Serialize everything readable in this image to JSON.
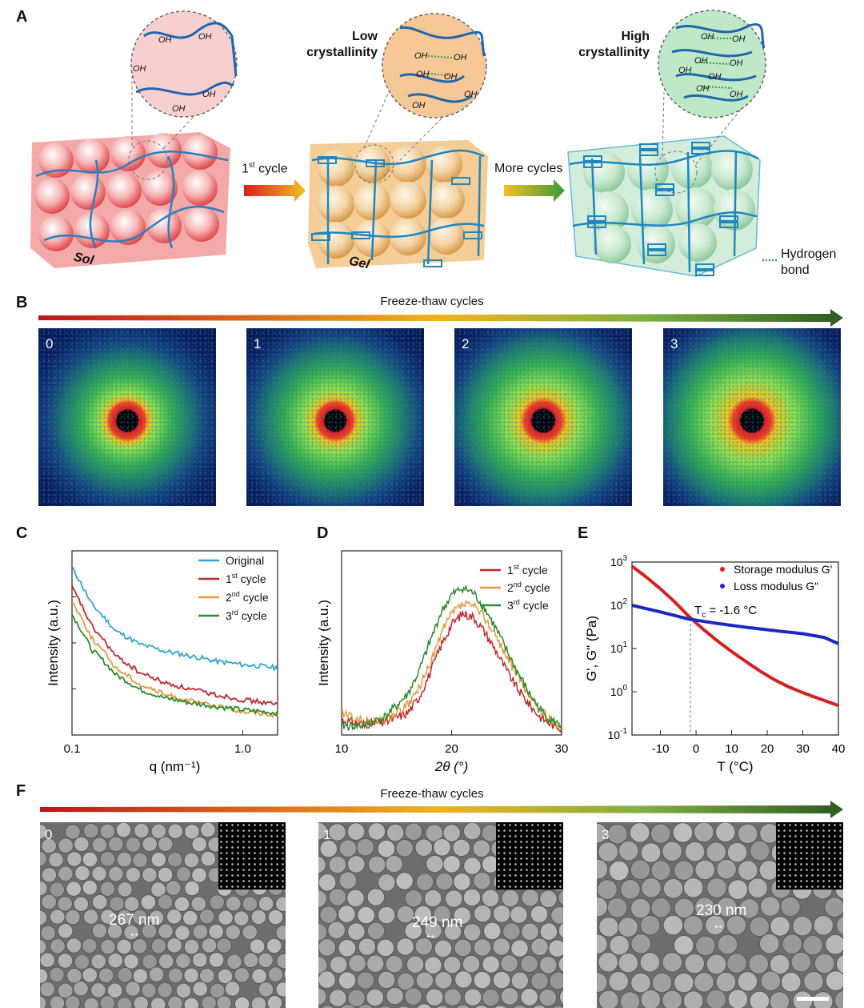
{
  "panels": {
    "A": "A",
    "B": "B",
    "C": "C",
    "D": "D",
    "E": "E",
    "F": "F"
  },
  "scheme": {
    "low_crystallinity": [
      "Low",
      "crystallinity"
    ],
    "high_crystallinity": [
      "High",
      "crystallinity"
    ],
    "first_cycle": {
      "base": "1",
      "sup": "st",
      "rest": " cycle"
    },
    "more_cycles": "More cycles",
    "sol": "Sol",
    "gel": "Gel",
    "hydrogen_bond": [
      "Hydrogen",
      "bond"
    ],
    "oh": "OH"
  },
  "freeze_thaw_label": "Freeze-thaw cycles",
  "saxs_panels": [
    "0",
    "1",
    "2",
    "3"
  ],
  "sem_panels": [
    {
      "num": "0",
      "size": "267 nm"
    },
    {
      "num": "1",
      "size": "249 nm"
    },
    {
      "num": "3",
      "size": "230 nm"
    }
  ],
  "colors": {
    "original": "#2fa6d2",
    "cycle1": "#c2282e",
    "cycle2": "#e39a3c",
    "cycle3": "#2f8a2f",
    "storage": "#d81e1e",
    "loss": "#1a28c8"
  },
  "chart_data": [
    {
      "panel": "C",
      "type": "line",
      "xlabel": "q (nm⁻¹)",
      "ylabel": "Intensity (a.u.)",
      "x_scale": "log",
      "xlim": [
        0.1,
        1.6
      ],
      "xticks": [
        "0.1",
        "1.0"
      ],
      "legend": "top-right",
      "series": [
        {
          "name": "Original",
          "x": [
            0.1,
            0.13,
            0.18,
            0.25,
            0.35,
            0.5,
            0.7,
            1.0,
            1.6
          ],
          "y": [
            100,
            78,
            62,
            54,
            50,
            47,
            44,
            42,
            40
          ]
        },
        {
          "name": "1st cycle",
          "x": [
            0.1,
            0.13,
            0.18,
            0.25,
            0.35,
            0.5,
            0.7,
            1.0,
            1.6
          ],
          "y": [
            88,
            65,
            47,
            37,
            31,
            27,
            24,
            21,
            18
          ]
        },
        {
          "name": "2nd cycle",
          "x": [
            0.1,
            0.13,
            0.18,
            0.25,
            0.35,
            0.5,
            0.7,
            1.0,
            1.6
          ],
          "y": [
            80,
            58,
            40,
            30,
            24,
            20,
            17,
            14,
            12
          ]
        },
        {
          "name": "3rd cycle",
          "x": [
            0.1,
            0.13,
            0.18,
            0.25,
            0.35,
            0.5,
            0.7,
            1.0,
            1.6
          ],
          "y": [
            72,
            51,
            36,
            27,
            22,
            19,
            17,
            15,
            13
          ]
        }
      ]
    },
    {
      "panel": "D",
      "type": "line",
      "xlabel": "2θ (°)",
      "ylabel": "Intensity (a.u.)",
      "xlim": [
        10,
        30
      ],
      "xticks": [
        "10",
        "20",
        "30"
      ],
      "legend": "top-right",
      "series": [
        {
          "name": "1st cycle",
          "x": [
            10,
            12,
            14,
            16,
            17,
            18,
            19,
            20,
            21,
            22,
            23,
            24,
            25,
            26,
            27,
            28,
            29,
            30
          ],
          "y": [
            0.08,
            0.06,
            0.07,
            0.12,
            0.2,
            0.33,
            0.48,
            0.6,
            0.66,
            0.64,
            0.56,
            0.46,
            0.35,
            0.25,
            0.17,
            0.1,
            0.06,
            0.04
          ]
        },
        {
          "name": "2nd cycle",
          "x": [
            10,
            12,
            14,
            16,
            17,
            18,
            19,
            20,
            21,
            22,
            23,
            24,
            25,
            26,
            27,
            28,
            29,
            30
          ],
          "y": [
            0.12,
            0.07,
            0.08,
            0.16,
            0.25,
            0.38,
            0.54,
            0.66,
            0.71,
            0.7,
            0.64,
            0.54,
            0.43,
            0.32,
            0.22,
            0.14,
            0.08,
            0.05
          ]
        },
        {
          "name": "3rd cycle",
          "x": [
            10,
            12,
            14,
            16,
            17,
            18,
            19,
            20,
            21,
            22,
            23,
            24,
            25,
            26,
            27,
            28,
            29,
            30
          ],
          "y": [
            0.05,
            0.05,
            0.1,
            0.22,
            0.34,
            0.5,
            0.66,
            0.76,
            0.8,
            0.77,
            0.69,
            0.58,
            0.46,
            0.34,
            0.23,
            0.14,
            0.08,
            0.05
          ]
        }
      ]
    },
    {
      "panel": "E",
      "type": "line",
      "xlabel": "T (°C)",
      "ylabel": "G', G\" (Pa)",
      "y_scale": "log",
      "xlim": [
        -18,
        40
      ],
      "ylim": [
        0.1,
        1000
      ],
      "xticks": [
        "-10",
        "0",
        "10",
        "20",
        "30",
        "40"
      ],
      "legend": "top-right",
      "annotation": "Tc = -1.6 °C",
      "annotation_parts": {
        "t": "T",
        "sub": "c",
        "rest": " = -1.6 °C"
      },
      "crossover_x": -1.6,
      "series": [
        {
          "name": "Storage modulus G'",
          "x": [
            -18,
            -14,
            -10,
            -6,
            -2,
            2,
            6,
            10,
            14,
            18,
            22,
            26,
            30,
            34,
            38,
            40
          ],
          "y": [
            800,
            450,
            240,
            120,
            55,
            28,
            15,
            8.5,
            5,
            3,
            1.9,
            1.3,
            0.95,
            0.72,
            0.55,
            0.48
          ]
        },
        {
          "name": "Loss modulus G\"",
          "x": [
            -18,
            -10,
            -2,
            6,
            14,
            22,
            30,
            36,
            40
          ],
          "y": [
            100,
            70,
            48,
            38,
            31,
            26,
            22,
            18,
            13
          ]
        }
      ]
    }
  ]
}
